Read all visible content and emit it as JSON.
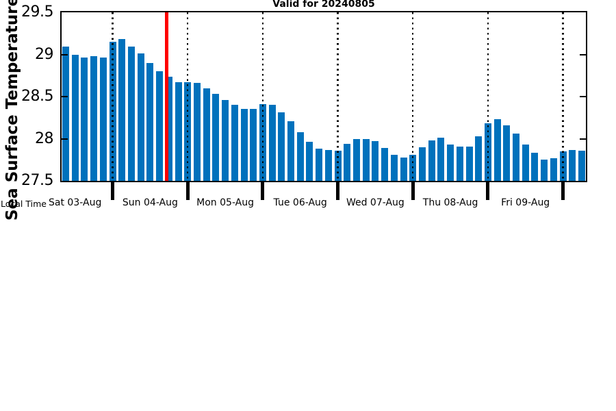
{
  "colors": {
    "bar": "#0071bc",
    "now_line": "#ff0000",
    "axis": "#000000",
    "background": "#ffffff"
  },
  "chart_data": {
    "type": "bar",
    "title": "Valid for 20240805",
    "ylabel": "Sea Surface Temperature",
    "x_axis_note": "Local Time",
    "ylim": [
      27.5,
      29.5
    ],
    "ytick_labels": [
      "29.5",
      "29",
      "28.5",
      "28",
      "27.5"
    ],
    "ytick_values": [
      29.5,
      29.0,
      28.5,
      28.0,
      27.5
    ],
    "day_labels": [
      "Sat 03-Aug",
      "Sun 04-Aug",
      "Mon 05-Aug",
      "Tue 06-Aug",
      "Wed 07-Aug",
      "Thu 08-Aug",
      "Fri 09-Aug"
    ],
    "interval_hours": 3,
    "first_bar_time_estimate": "Sat 03-Aug 09:00",
    "values": [
      29.09,
      29.0,
      28.96,
      28.98,
      28.96,
      29.15,
      29.18,
      29.09,
      29.01,
      28.9,
      28.8,
      28.74,
      28.67,
      28.67,
      28.66,
      28.6,
      28.53,
      28.46,
      28.4,
      28.35,
      28.35,
      28.41,
      28.4,
      28.31,
      28.21,
      28.08,
      27.96,
      27.88,
      27.87,
      27.86,
      27.94,
      28.0,
      28.0,
      27.97,
      27.89,
      27.81,
      27.78,
      27.81,
      27.9,
      27.98,
      28.01,
      27.93,
      27.91,
      27.91,
      28.03,
      28.18,
      28.23,
      28.16,
      28.06,
      27.93,
      27.83,
      27.75,
      27.77,
      27.85,
      27.87,
      27.86
    ],
    "day_boundary_bar_indices": [
      5,
      13,
      21,
      29,
      37,
      45,
      53
    ],
    "now_marker": {
      "color": "#ff0000",
      "bar_position": 10.75,
      "approx_time": "Sun 04-Aug ~17:00"
    },
    "bar_color": "#0071bc",
    "grid": "vertical dotted lines at day boundaries",
    "legend": "none"
  }
}
